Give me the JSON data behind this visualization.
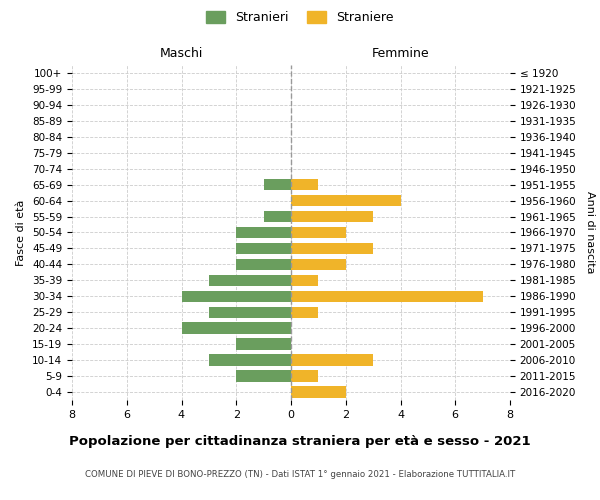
{
  "age_groups": [
    "100+",
    "95-99",
    "90-94",
    "85-89",
    "80-84",
    "75-79",
    "70-74",
    "65-69",
    "60-64",
    "55-59",
    "50-54",
    "45-49",
    "40-44",
    "35-39",
    "30-34",
    "25-29",
    "20-24",
    "15-19",
    "10-14",
    "5-9",
    "0-4"
  ],
  "birth_years": [
    "≤ 1920",
    "1921-1925",
    "1926-1930",
    "1931-1935",
    "1936-1940",
    "1941-1945",
    "1946-1950",
    "1951-1955",
    "1956-1960",
    "1961-1965",
    "1966-1970",
    "1971-1975",
    "1976-1980",
    "1981-1985",
    "1986-1990",
    "1991-1995",
    "1996-2000",
    "2001-2005",
    "2006-2010",
    "2011-2015",
    "2016-2020"
  ],
  "males": [
    0,
    0,
    0,
    0,
    0,
    0,
    0,
    1,
    0,
    1,
    2,
    2,
    2,
    3,
    4,
    3,
    4,
    2,
    3,
    2,
    0
  ],
  "females": [
    0,
    0,
    0,
    0,
    0,
    0,
    0,
    1,
    4,
    3,
    2,
    3,
    2,
    1,
    7,
    1,
    0,
    0,
    3,
    1,
    2
  ],
  "male_color": "#6a9e5e",
  "female_color": "#f0b429",
  "title": "Popolazione per cittadinanza straniera per età e sesso - 2021",
  "subtitle": "COMUNE DI PIEVE DI BONO-PREZZO (TN) - Dati ISTAT 1° gennaio 2021 - Elaborazione TUTTITALIA.IT",
  "ylabel_left": "Fasce di età",
  "ylabel_right": "Anni di nascita",
  "xlabel_left": "Maschi",
  "xlabel_top_right": "Femmine",
  "legend_male": "Stranieri",
  "legend_female": "Straniere",
  "xlim": 8,
  "background_color": "#ffffff",
  "grid_color": "#cccccc"
}
